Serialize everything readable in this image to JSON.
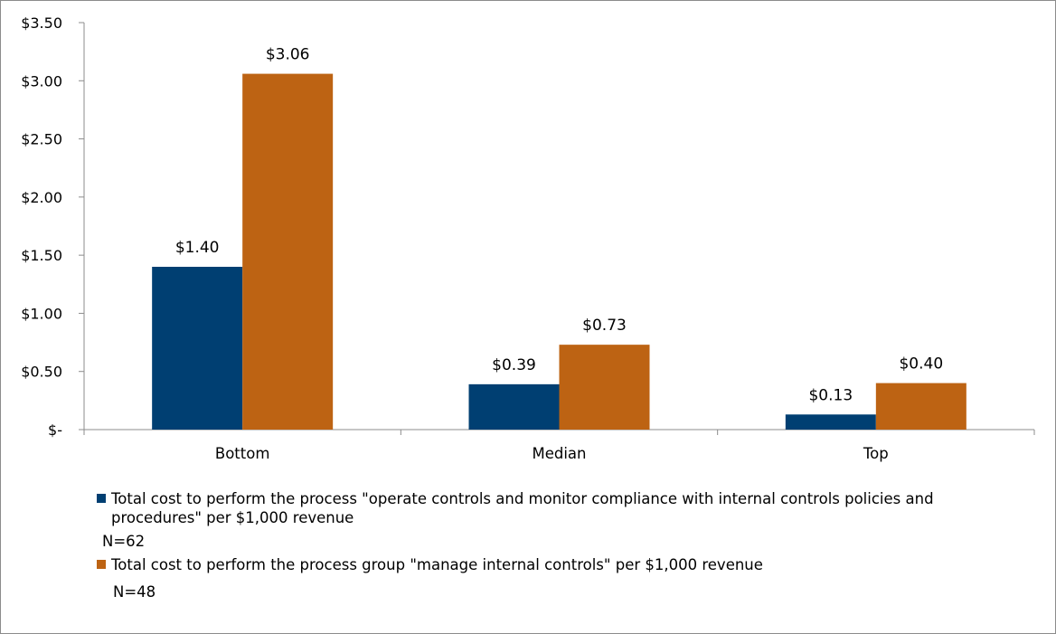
{
  "chart_data": {
    "type": "bar",
    "categories": [
      "Bottom",
      "Median",
      "Top"
    ],
    "series": [
      {
        "name": "Total cost to perform the process \"operate controls and monitor compliance with internal controls policies and procedures\" per $1,000 revenue",
        "note": "N=62",
        "color": "#003f72",
        "values": [
          1.4,
          0.39,
          0.13
        ],
        "labels": [
          "$1.40",
          "$0.39",
          "$0.13"
        ]
      },
      {
        "name": "Total cost to perform the process group \"manage internal controls\" per $1,000 revenue",
        "note": "N=48",
        "color": "#bd6313",
        "values": [
          3.06,
          0.73,
          0.4
        ],
        "labels": [
          "$3.06",
          "$0.73",
          "$0.40"
        ]
      }
    ],
    "ylim": [
      0,
      3.5
    ],
    "yticks": [
      0,
      0.5,
      1.0,
      1.5,
      2.0,
      2.5,
      3.0,
      3.5
    ],
    "ytick_labels": [
      "$-",
      "$0.50",
      "$1.00",
      "$1.50",
      "$2.00",
      "$2.50",
      "$3.00",
      "$3.50"
    ],
    "grid": false,
    "legend_position": "bottom"
  }
}
